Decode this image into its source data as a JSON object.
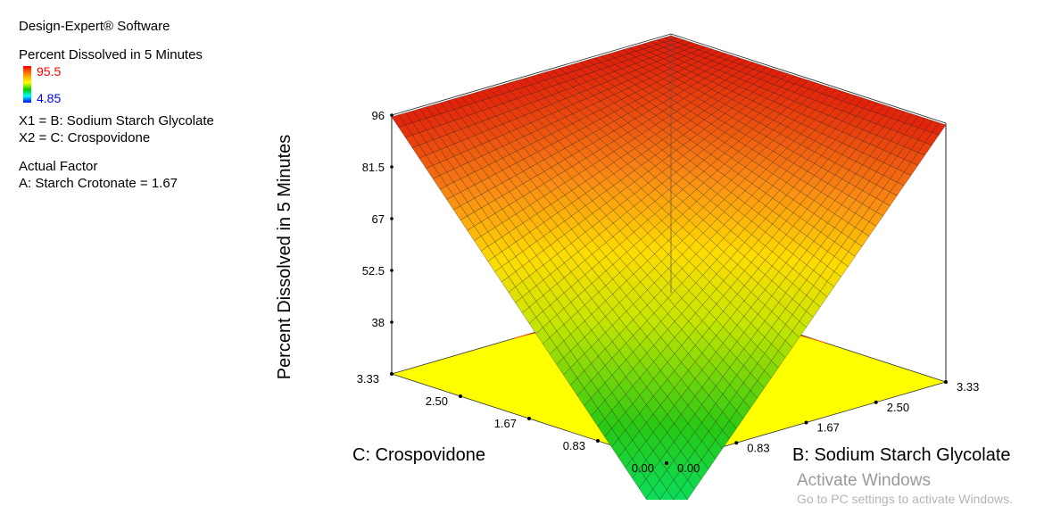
{
  "software": "Design-Expert® Software",
  "legend": {
    "response": "Percent Dissolved in 5 Minutes",
    "max": "95.5",
    "min": "4.85",
    "x1": "X1 = B: Sodium Starch Glycolate",
    "x2": "X2 = C: Crospovidone",
    "actual_factor_title": "Actual Factor",
    "actual_factor": "A: Starch Crotonate = 1.67"
  },
  "chart_data": {
    "type": "surface",
    "title": "",
    "zlabel": "Percent Dissolved in 5 Minutes",
    "xlabel": "B: Sodium Starch Glycolate",
    "ylabel": "C: Crospovidone",
    "x_ticks": [
      "0.00",
      "0.83",
      "1.67",
      "2.50",
      "3.33"
    ],
    "y_ticks": [
      "0.00",
      "0.83",
      "1.67",
      "2.50",
      "3.33"
    ],
    "z_ticks": [
      "38",
      "52.5",
      "67",
      "81.5",
      "96"
    ],
    "xlim": [
      0,
      3.33
    ],
    "ylim": [
      0,
      3.33
    ],
    "zlim": [
      23.5,
      96
    ],
    "surface_corners": {
      "b0_c0": 4.85,
      "b333_c0": 95.5,
      "b0_c333": 95.5,
      "b333_c333": 95.5
    },
    "colors": {
      "high": "#ff0000",
      "mid": "#ffff00",
      "low": "#00cc33",
      "floor": "#ffff00"
    }
  },
  "watermark": {
    "title": "Activate Windows",
    "subtitle": "Go to PC settings to activate Windows."
  }
}
